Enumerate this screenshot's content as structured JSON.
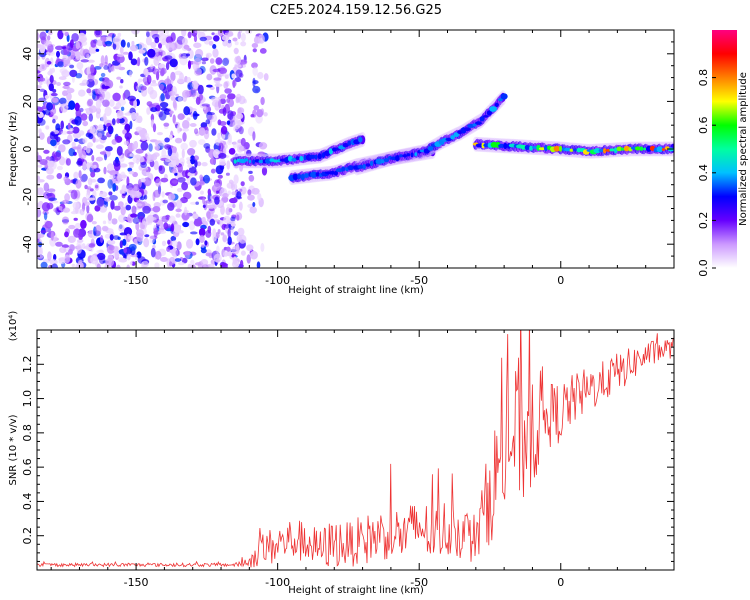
{
  "figure": {
    "title": "C2E5.2024.159.12.56.G25"
  },
  "chart_data": [
    {
      "type": "heatmap",
      "title": "C2E5.2024.159.12.56.G25",
      "xlabel": "Height of straight line (km)",
      "ylabel": "Frequency (Hz)",
      "xlim": [
        -185,
        40
      ],
      "ylim": [
        -50,
        50
      ],
      "x_ticks": [
        -150,
        -100,
        -50,
        0
      ],
      "y_ticks": [
        -40,
        -20,
        0,
        20,
        40
      ],
      "colorbar": {
        "label": "Normalized spectral amplitude",
        "range": [
          0,
          1
        ],
        "ticks": [
          "0.0",
          "0.2",
          "0.4",
          "0.6",
          "0.8"
        ],
        "colormap": [
          "#ffffff",
          "#cc99ff",
          "#6600ff",
          "#0000ff",
          "#00c0ff",
          "#00ffa0",
          "#00ff00",
          "#ffff00",
          "#ff8000",
          "#ff0000",
          "#ff0080"
        ]
      },
      "noise_region_x": [
        -185,
        -112
      ],
      "trend_tracks": [
        {
          "x": [
            -115,
            -100,
            -85,
            -75,
            -70
          ],
          "y": [
            -5,
            -5,
            -3,
            2,
            4
          ],
          "peak_amplitude": 0.45
        },
        {
          "x": [
            -95,
            -80,
            -72,
            -60,
            -50,
            -45
          ],
          "y": [
            -12,
            -10,
            -7,
            -4,
            -2,
            -1
          ],
          "peak_amplitude": 0.35
        },
        {
          "x": [
            -72,
            -60,
            -48,
            -42,
            -35,
            -28,
            -20
          ],
          "y": [
            -8,
            -4,
            -1,
            3,
            7,
            12,
            22
          ],
          "peak_amplitude": 0.4
        },
        {
          "x": [
            -30,
            -15,
            0,
            10,
            25,
            40
          ],
          "y": [
            2,
            1,
            0,
            -1,
            0,
            0
          ],
          "peak_amplitude": 0.9
        }
      ]
    },
    {
      "type": "line",
      "xlabel": "Height of straight line (km)",
      "ylabel": "SNR (10 * v/v)",
      "y_multiplier_label": "(x10⁴)",
      "xlim": [
        -185,
        40
      ],
      "ylim": [
        0,
        1.4
      ],
      "x_ticks": [
        -150,
        -100,
        -50,
        0
      ],
      "y_ticks": [
        "0.2",
        "0.4",
        "0.6",
        "0.8",
        "1.0",
        "1.2"
      ],
      "color": "#ee3333",
      "series": [
        {
          "x": [
            -185,
            -150,
            -115,
            -110,
            -105,
            -100,
            -95,
            -90,
            -85,
            -80,
            -75,
            -70,
            -65,
            -60,
            -55,
            -50,
            -45,
            -40,
            -35,
            -30,
            -25,
            -22,
            -20,
            -18,
            -15,
            -12,
            -10,
            -5,
            0,
            5,
            10,
            15,
            20,
            25,
            30,
            35,
            40
          ],
          "y": [
            0.03,
            0.03,
            0.03,
            0.05,
            0.12,
            0.15,
            0.18,
            0.16,
            0.12,
            0.16,
            0.15,
            0.17,
            0.2,
            0.22,
            0.2,
            0.26,
            0.2,
            0.25,
            0.22,
            0.18,
            0.45,
            0.6,
            0.7,
            0.75,
            0.8,
            0.82,
            0.85,
            0.9,
            0.92,
            1.0,
            1.05,
            1.1,
            1.15,
            1.2,
            1.25,
            1.28,
            1.3
          ],
          "noise_amplitude": [
            0.01,
            0.01,
            0.01,
            0.04,
            0.1,
            0.12,
            0.13,
            0.12,
            0.12,
            0.15,
            0.13,
            0.15,
            0.15,
            0.16,
            0.16,
            0.18,
            0.16,
            0.18,
            0.16,
            0.15,
            0.3,
            0.35,
            0.4,
            0.4,
            0.45,
            0.45,
            0.4,
            0.2,
            0.18,
            0.15,
            0.14,
            0.12,
            0.12,
            0.1,
            0.08,
            0.07,
            0.06
          ]
        }
      ]
    }
  ]
}
